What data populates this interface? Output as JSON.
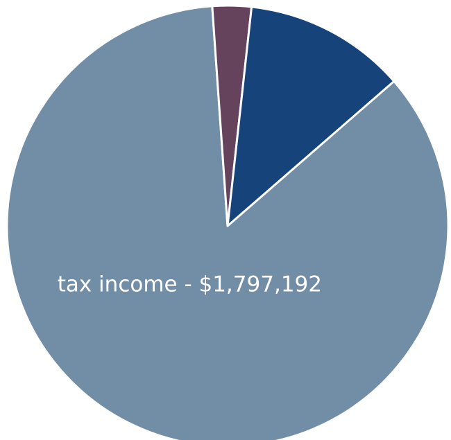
{
  "chart_data": {
    "type": "pie",
    "slices": [
      {
        "label": "",
        "value": 1797192,
        "color": "#728ea6"
      },
      {
        "label": "",
        "value": 60000,
        "color": "#66435d"
      },
      {
        "label": "",
        "value": 250000,
        "color": "#16437a"
      }
    ],
    "data_labels": [
      {
        "slice_index": 0,
        "text": "tax income - $1,797,192"
      }
    ],
    "legend": "none"
  }
}
